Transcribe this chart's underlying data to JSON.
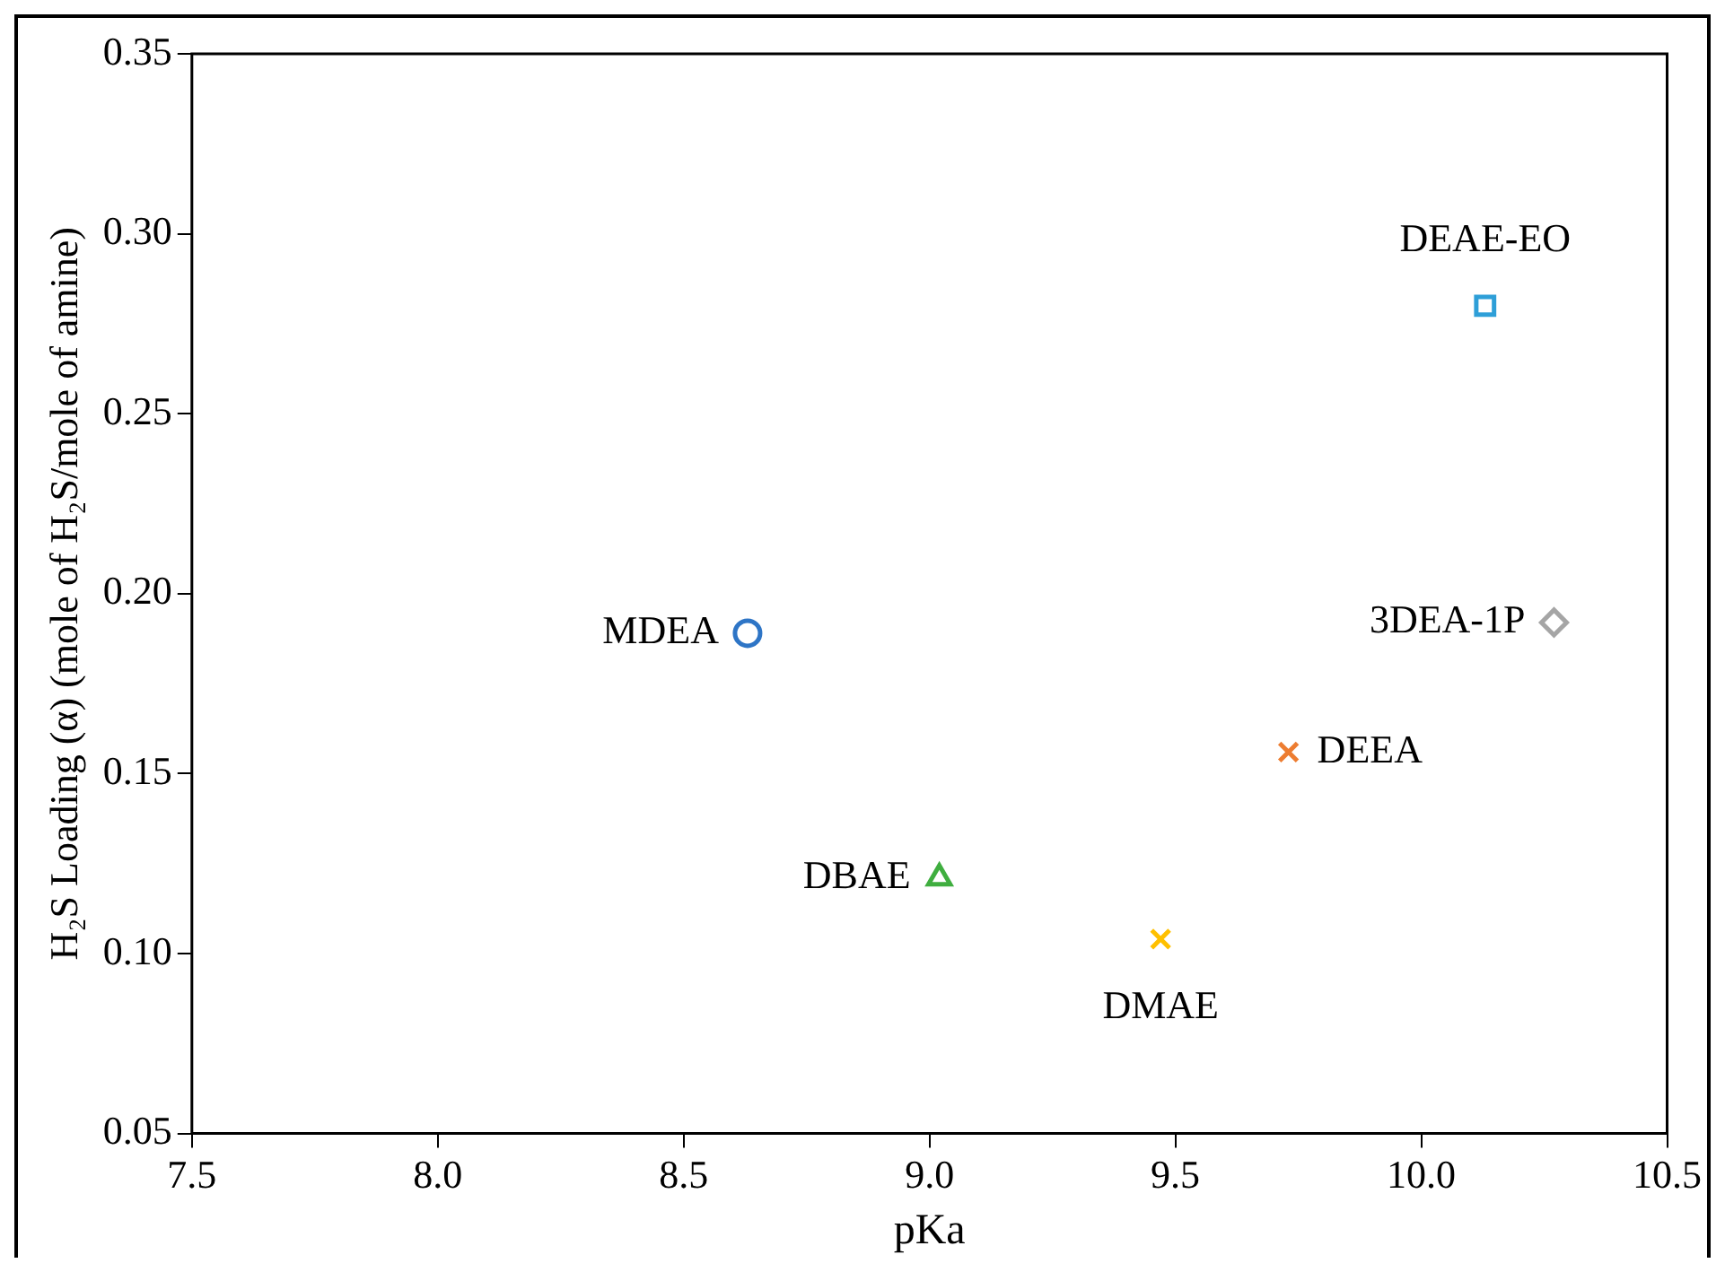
{
  "chart_data": {
    "type": "scatter",
    "xlabel": "pKa",
    "ylabel": "H₂S Loading (α) (mole of H₂S/mole of amine)",
    "xlim": [
      7.5,
      10.5
    ],
    "xticks": [
      {
        "value": 7.5,
        "label": "7.5"
      },
      {
        "value": 8,
        "label": "8.0"
      },
      {
        "value": 8.5,
        "label": "8.5"
      },
      {
        "value": 9,
        "label": "9.0"
      },
      {
        "value": 9.5,
        "label": "9.5"
      },
      {
        "value": 10,
        "label": "10.0"
      },
      {
        "value": 10.5,
        "label": "10.5"
      }
    ],
    "ylim": [
      0.05,
      0.35
    ],
    "yticks": [
      {
        "value": 0.05,
        "label": "0.05"
      },
      {
        "value": 0.1,
        "label": "0.10"
      },
      {
        "value": 0.15,
        "label": "0.15"
      },
      {
        "value": 0.2,
        "label": "0.20"
      },
      {
        "value": 0.25,
        "label": "0.25"
      },
      {
        "value": 0.3,
        "label": "0.30"
      },
      {
        "value": 0.35,
        "label": "0.35"
      }
    ],
    "grid": false,
    "legend": false,
    "series": [
      {
        "name": "MDEA",
        "color": "#2e75c6",
        "marker": "circle",
        "x": [
          8.63
        ],
        "values": [
          0.189
        ]
      },
      {
        "name": "DBAE",
        "color": "#3fae3f",
        "marker": "triangle",
        "x": [
          9.02
        ],
        "values": [
          0.121
        ]
      },
      {
        "name": "DMAE",
        "color": "#ffc000",
        "marker": "cross",
        "x": [
          9.47
        ],
        "values": [
          0.104
        ]
      },
      {
        "name": "DEEA",
        "color": "#ed7d31",
        "marker": "cross",
        "x": [
          9.73
        ],
        "values": [
          0.156
        ]
      },
      {
        "name": "DEAE-EO",
        "color": "#2e9fd8",
        "marker": "square",
        "x": [
          10.13
        ],
        "values": [
          0.28
        ]
      },
      {
        "name": "3DEA-1P",
        "color": "#a5a5a5",
        "marker": "diamond",
        "x": [
          10.27
        ],
        "values": [
          0.192
        ]
      }
    ]
  }
}
